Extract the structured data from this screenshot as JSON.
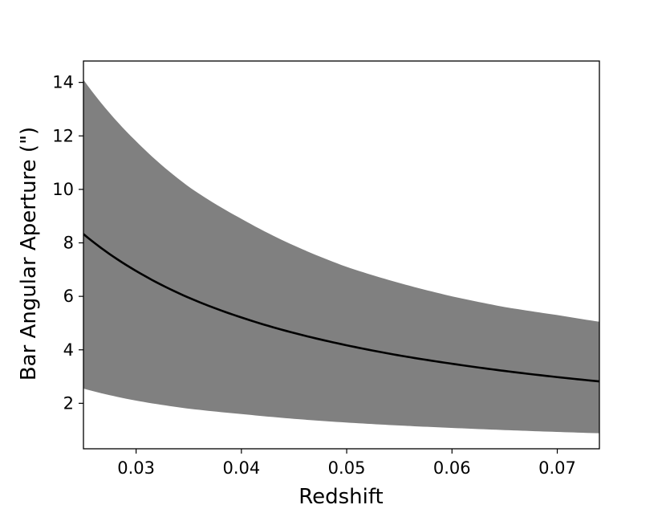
{
  "chart_data": {
    "type": "area",
    "title": "",
    "xlabel": "Redshift",
    "ylabel": "Bar Angular Aperture (\")",
    "xlim": [
      0.025,
      0.074
    ],
    "ylim": [
      0.3,
      14.8
    ],
    "grid": false,
    "x_ticks": [
      0.03,
      0.04,
      0.05,
      0.06,
      0.07
    ],
    "x_tick_labels": [
      "0.03",
      "0.04",
      "0.05",
      "0.06",
      "0.07"
    ],
    "y_ticks": [
      2,
      4,
      6,
      8,
      10,
      12,
      14
    ],
    "y_tick_labels": [
      "2",
      "4",
      "6",
      "8",
      "10",
      "12",
      "14"
    ],
    "x": [
      0.025,
      0.03,
      0.035,
      0.04,
      0.045,
      0.05,
      0.055,
      0.06,
      0.065,
      0.07,
      0.074
    ],
    "series": [
      {
        "role": "band",
        "color": "#808080",
        "upper": [
          14.1,
          11.8,
          10.1,
          8.9,
          7.9,
          7.1,
          6.5,
          6.0,
          5.6,
          5.3,
          5.05
        ],
        "lower": [
          2.55,
          2.1,
          1.8,
          1.6,
          1.42,
          1.28,
          1.17,
          1.08,
          1.0,
          0.93,
          0.88
        ]
      },
      {
        "role": "line",
        "color": "#000000",
        "values": [
          8.33,
          6.95,
          5.95,
          5.21,
          4.63,
          4.17,
          3.79,
          3.48,
          3.21,
          2.98,
          2.82
        ]
      }
    ]
  }
}
